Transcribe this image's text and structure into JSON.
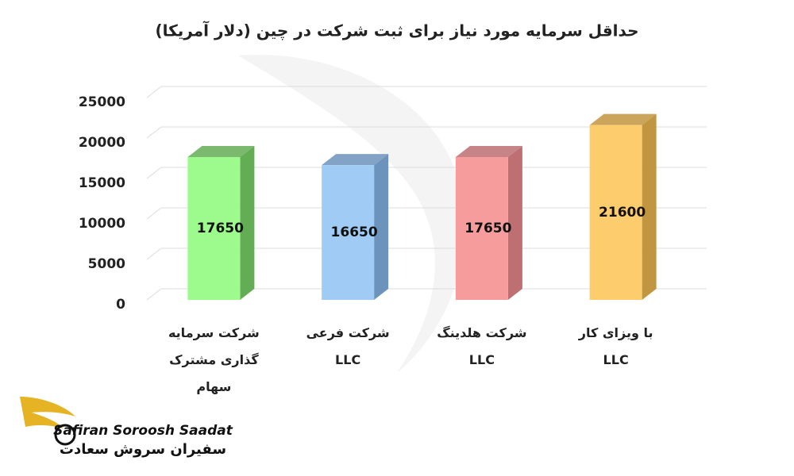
{
  "chart_data": {
    "type": "bar3d",
    "title": "حداقل سرمایه مورد نیاز برای ثبت شرکت در چین (دلار آمریکا)",
    "categories": [
      "شرکت سرمایه گذاری مشترک سهام",
      "شرکت فرعی LLC",
      "شرکت هلدینگ LLC",
      "با ویزای کار LLC"
    ],
    "series": [
      {
        "values": [
          17650,
          16650,
          17650,
          21600
        ],
        "colors": [
          "#9cfb8c",
          "#9fcbf5",
          "#f79c9c",
          "#fdcc6c"
        ],
        "side_colors": [
          "#63ad55",
          "#6c93bb",
          "#bd6f71",
          "#c29540"
        ]
      }
    ],
    "ylim": [
      0,
      25000
    ],
    "yticks": [
      0,
      5000,
      10000,
      15000,
      20000,
      25000
    ],
    "grid": true,
    "logo": {
      "name_en": "Safiran Soroosh Saadat",
      "name_fa": "سفیران سروش سعادت"
    }
  }
}
